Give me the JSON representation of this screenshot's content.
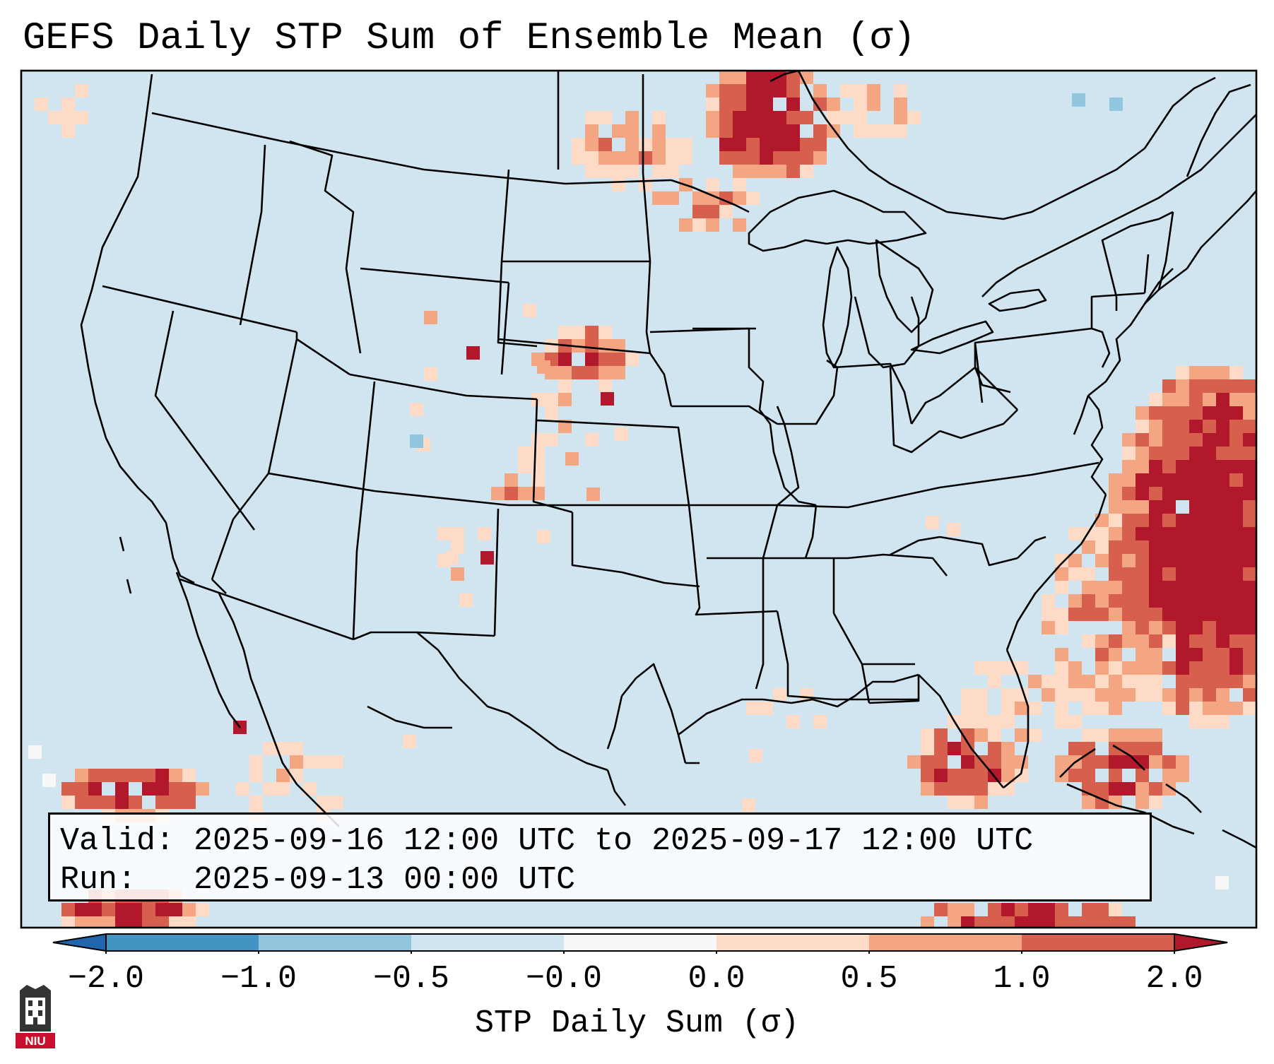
{
  "title": "GEFS Daily STP Sum of Ensemble Mean (σ)",
  "map": {
    "background_color": "#d1e5f0",
    "region": "CONUS",
    "features": [
      "coastlines",
      "state-borders",
      "country-borders",
      "great-lakes"
    ]
  },
  "info": {
    "valid_label": "Valid:",
    "valid_value": "2025-09-16 12:00 UTC to 2025-09-17 12:00 UTC",
    "run_label": "Run:",
    "run_value": "2025-09-13 00:00 UTC"
  },
  "colorbar": {
    "label": "STP Daily Sum (σ)",
    "ticks": [
      "−2.0",
      "−1.0",
      "−0.5",
      "−0.0",
      "0.0",
      "0.5",
      "1.0",
      "2.0"
    ],
    "colors": [
      "#2166ac",
      "#4393c3",
      "#92c5de",
      "#d1e5f0",
      "#f7f7f7",
      "#fddbc7",
      "#f4a582",
      "#d6604d",
      "#b2182b"
    ]
  },
  "logo": {
    "text": "NIU"
  }
}
